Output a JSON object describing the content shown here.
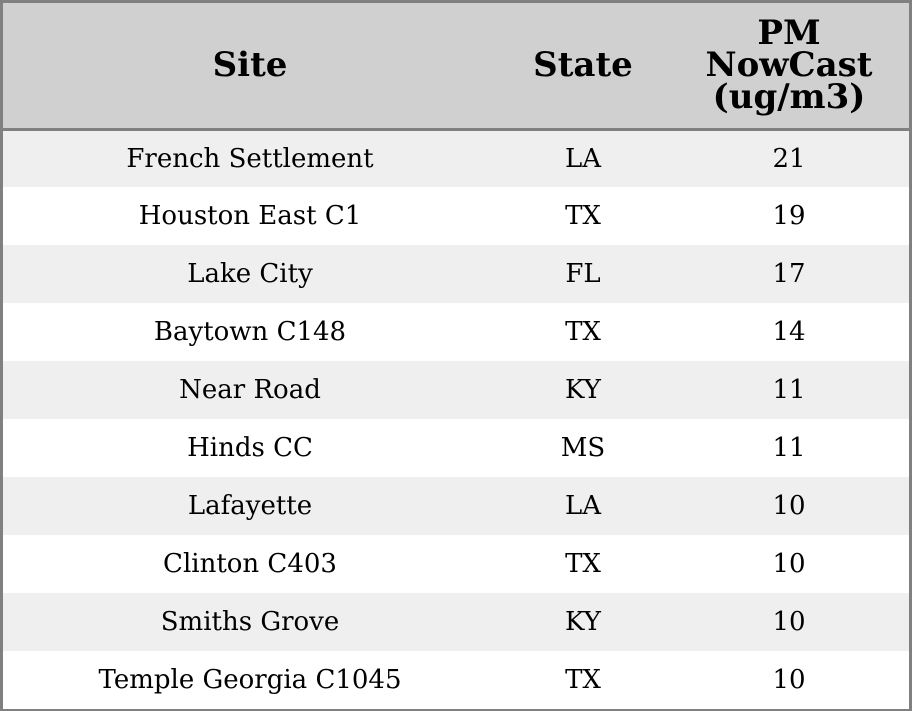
{
  "chart_data": {
    "type": "table",
    "columns": [
      "Site",
      "State",
      "PM NowCast (ug/m3)"
    ],
    "header_lines": {
      "site": [
        "Site"
      ],
      "state": [
        "State"
      ],
      "pm": [
        "PM",
        "NowCast",
        "(ug/m3)"
      ]
    },
    "rows": [
      {
        "site": "French Settlement",
        "state": "LA",
        "pm": "21"
      },
      {
        "site": "Houston East C1",
        "state": "TX",
        "pm": "19"
      },
      {
        "site": "Lake City",
        "state": "FL",
        "pm": "17"
      },
      {
        "site": "Baytown C148",
        "state": "TX",
        "pm": "14"
      },
      {
        "site": "Near Road",
        "state": "KY",
        "pm": "11"
      },
      {
        "site": "Hinds CC",
        "state": "MS",
        "pm": "11"
      },
      {
        "site": "Lafayette",
        "state": "LA",
        "pm": "10"
      },
      {
        "site": "Clinton C403",
        "state": "TX",
        "pm": "10"
      },
      {
        "site": "Smiths Grove",
        "state": "KY",
        "pm": "10"
      },
      {
        "site": "Temple Georgia C1045",
        "state": "TX",
        "pm": "10"
      }
    ]
  },
  "colors": {
    "header_bg": "#d0d0d0",
    "row_odd_bg": "#efefef",
    "row_even_bg": "#ffffff",
    "border": "#808080"
  }
}
